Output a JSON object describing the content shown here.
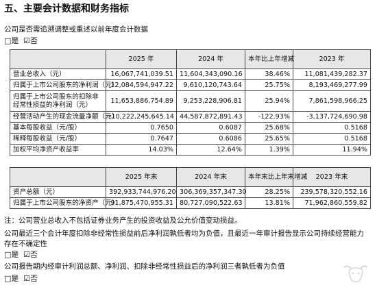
{
  "section_title": "五、主要会计数据和财务指标",
  "q_restate": "公司是否需追溯调整或重述以前年度会计数据",
  "opt_yes": "□是",
  "opt_no": "☑否",
  "t1": {
    "headers": [
      "",
      "2025 年",
      "2024 年",
      "本年比上年增减",
      "2023 年"
    ],
    "rows": [
      [
        "营业总收入（元）",
        "16,067,741,039.51",
        "11,604,343,090.16",
        "38.46%",
        "11,081,439,282.37"
      ],
      [
        "归属于上市公司股东的净利润（元）",
        "12,084,594,947.22",
        "9,610,120,743.64",
        "25.75%",
        "8,193,469,277.99"
      ],
      [
        "归属于上市公司股东的扣除非经常性损益的净利润（元）",
        "11,653,886,754.89",
        "9,253,228,906.81",
        "25.94%",
        "7,861,598,966.25"
      ],
      [
        "经营活动产生的现金流量净额（元）",
        "-10,222,245,645.14",
        "44,587,872,891.43",
        "-122.93%",
        "-3,137,724,690.98"
      ],
      [
        "基本每股收益（元/股）",
        "0.7650",
        "0.6087",
        "25.68%",
        "0.5168"
      ],
      [
        "稀释每股收益（元/股）",
        "0.7647",
        "0.6086",
        "25.65%",
        "0.5168"
      ],
      [
        "加权平均净资产收益率",
        "14.03%",
        "12.64%",
        "1.39%",
        "11.94%"
      ]
    ]
  },
  "t2": {
    "headers": [
      "",
      "2025 年末",
      "2024 年末",
      "本年末比上年末增减",
      "2023 年末"
    ],
    "rows": [
      [
        "资产总额（元）",
        "392,933,744,976.20",
        "306,369,357,347.30",
        "28.25%",
        "239,578,320,552.16"
      ],
      [
        "归属于上市公司股东的净资产（元）",
        "91,875,470,955.31",
        "80,727,090,522.63",
        "13.81%",
        "71,962,860,559.82"
      ]
    ]
  },
  "note1": "注：公司营业总收入不包括证券业务产生的投资收益及公允价值变动损益。",
  "note2": "公司最近三个会计年度扣除非经常性损益前后净利润孰低者均为负值，且最近一年审计报告显示公司持续经营能力存在不确定性",
  "note3": "公司报告期内经审计利润总额、净利润、扣除非经常性损益后的净利润三者孰低者为负值"
}
